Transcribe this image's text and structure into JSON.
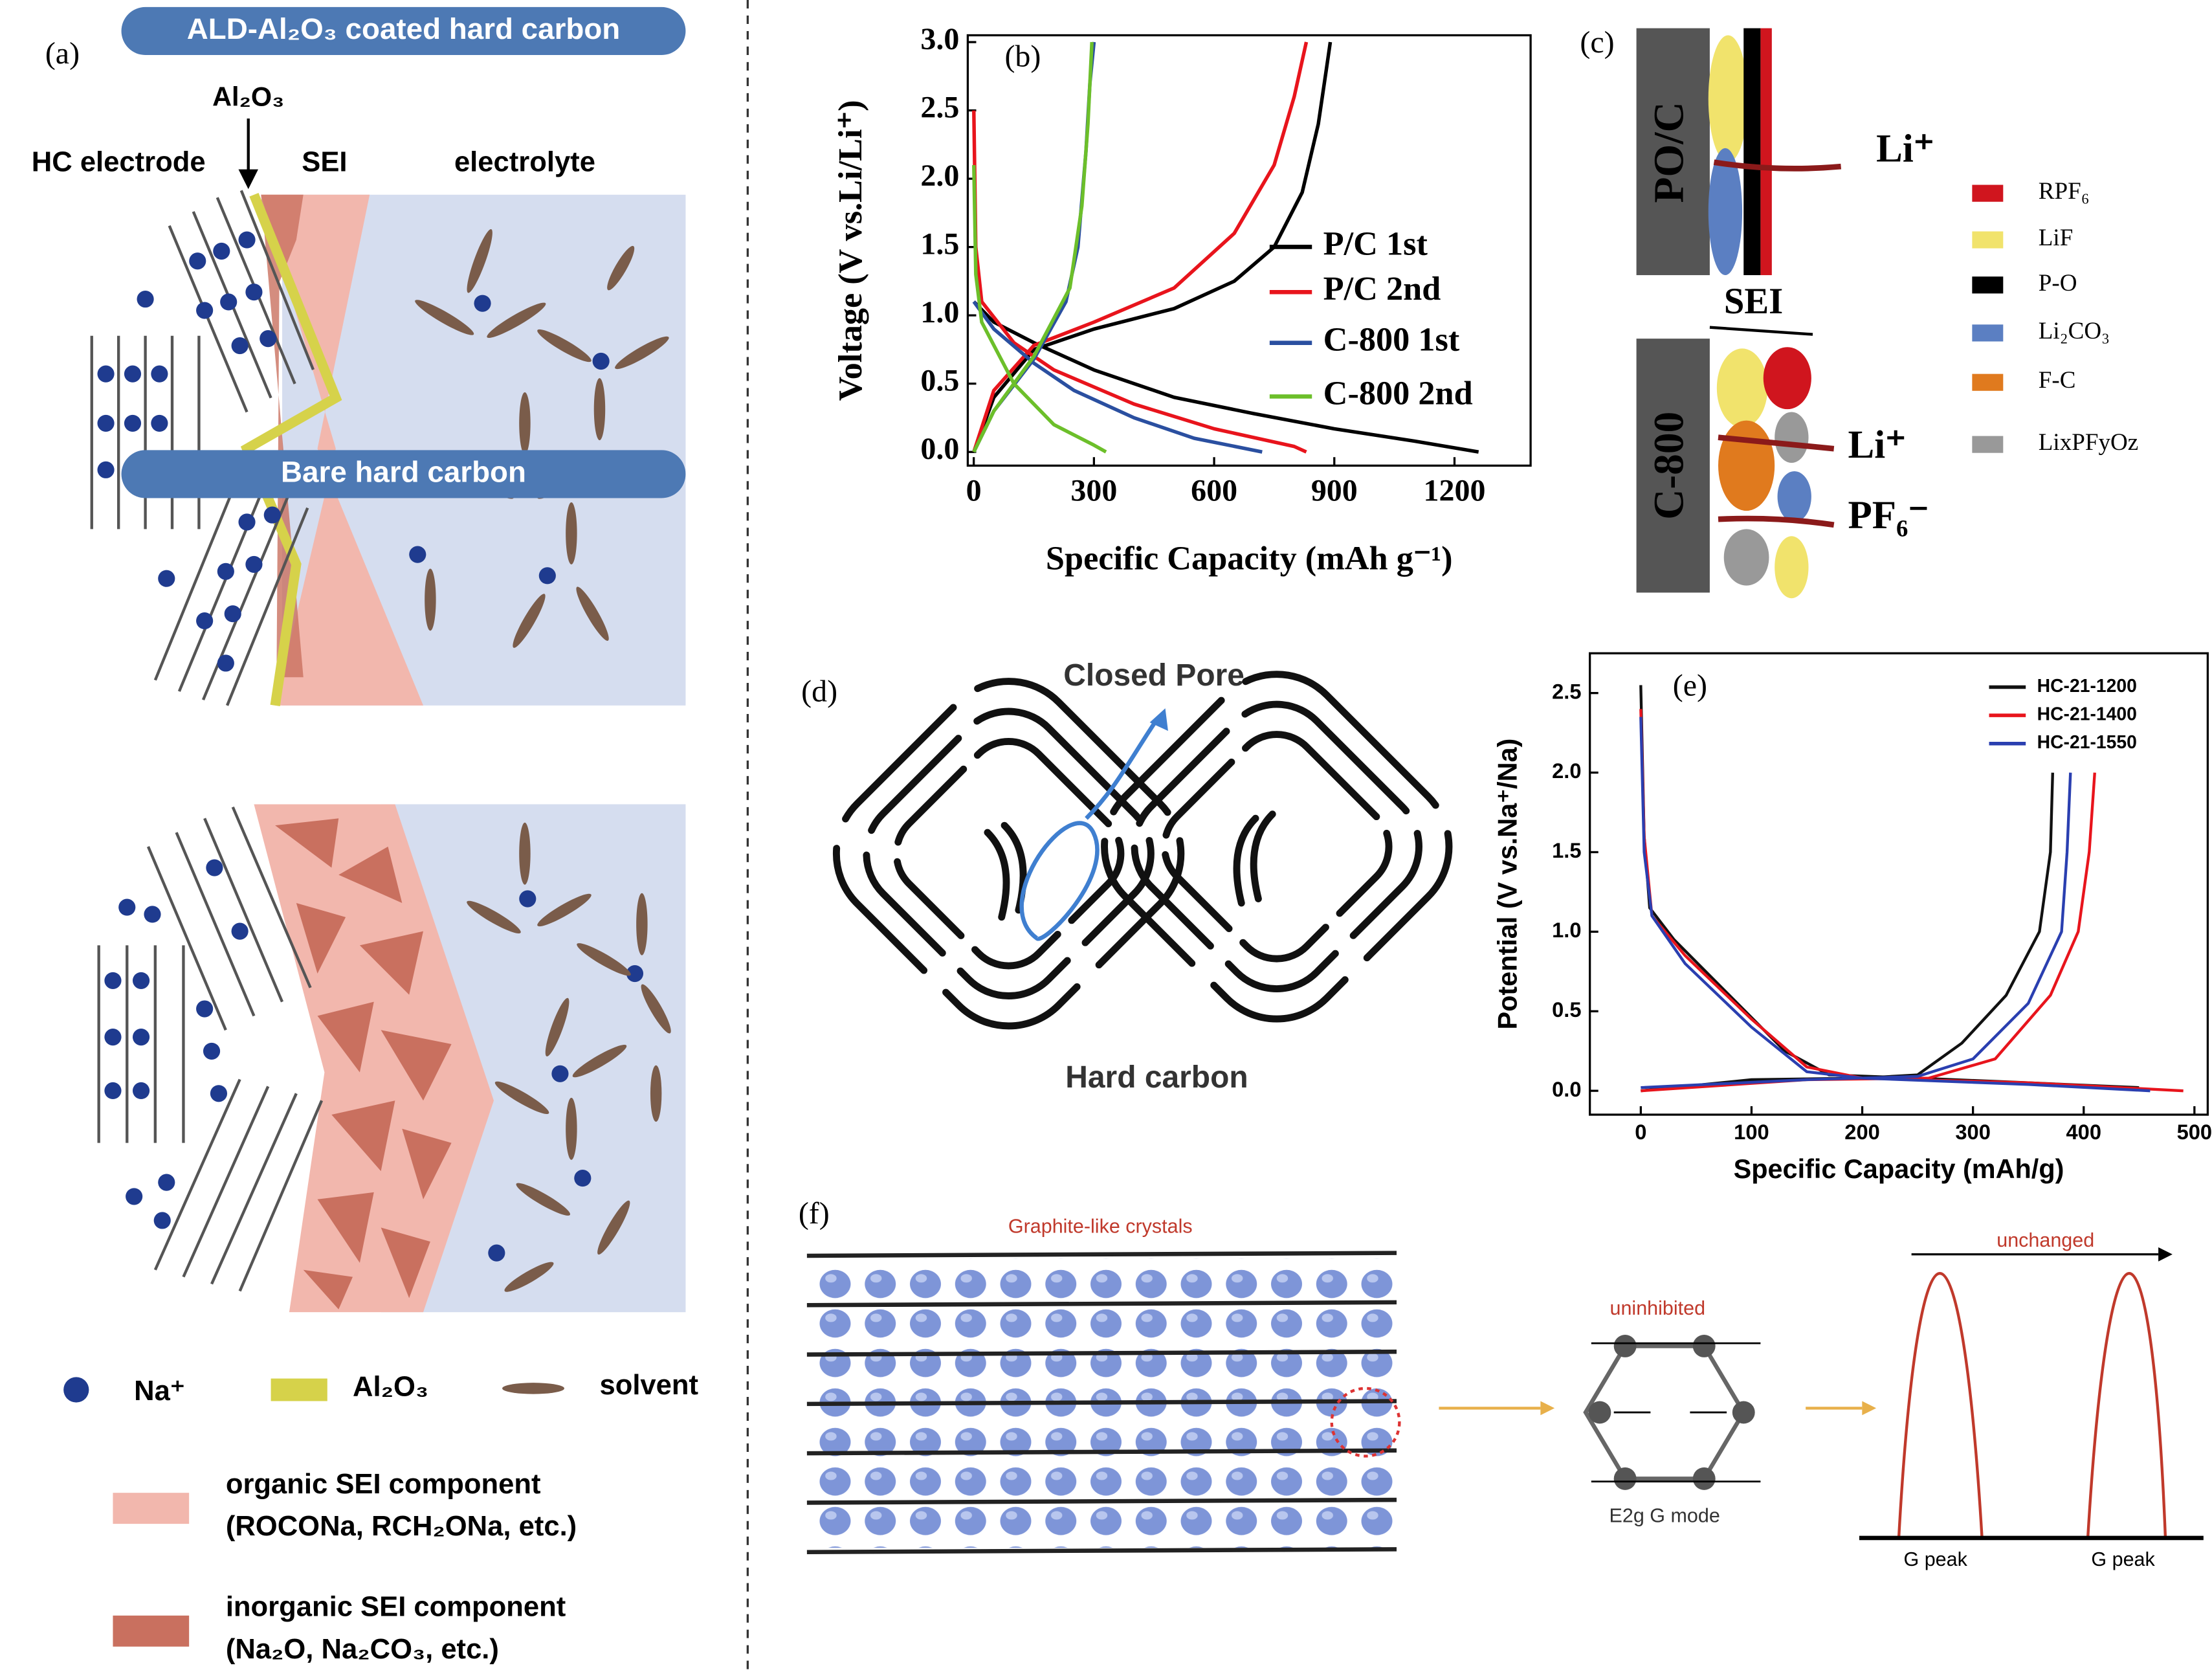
{
  "chart_data": [
    {
      "type": "line",
      "panel_label": "(b)",
      "x_label": "Specific Capacity (mAh g⁻¹)",
      "y_label": "Voltage (V vs.Li/Li⁺)",
      "xlim": [
        -15,
        1390
      ],
      "ylim": [
        -0.1,
        3.05
      ],
      "xticks": [
        0,
        300,
        600,
        900,
        1200
      ],
      "yticks": [
        {
          "value": 0,
          "label": "0.0"
        },
        0.5,
        {
          "value": 1,
          "label": "1.0"
        },
        1.5,
        {
          "value": 2,
          "label": "2.0"
        },
        2.5,
        {
          "value": 3,
          "label": "3.0"
        }
      ],
      "series": [
        {
          "name": "P/C 1st",
          "color": "#000000",
          "x": [
            0,
            50,
            150,
            300,
            500,
            700,
            900,
            1100,
            1260,
            null,
            0,
            50,
            150,
            300,
            500,
            650,
            750,
            820,
            860,
            880,
            890
          ],
          "values": [
            1.1,
            0.95,
            0.8,
            0.6,
            0.4,
            0.28,
            0.17,
            0.08,
            0.0,
            null,
            0.0,
            0.4,
            0.75,
            0.9,
            1.05,
            1.25,
            1.5,
            1.9,
            2.4,
            2.8,
            3.0
          ]
        },
        {
          "name": "P/C 2nd",
          "color": "#e8141c",
          "x": [
            0,
            5,
            20,
            100,
            200,
            400,
            600,
            800,
            830,
            null,
            0,
            50,
            150,
            300,
            500,
            650,
            750,
            800,
            830
          ],
          "values": [
            2.5,
            1.5,
            1.1,
            0.8,
            0.6,
            0.35,
            0.17,
            0.04,
            0.0,
            null,
            0.0,
            0.45,
            0.78,
            0.95,
            1.2,
            1.6,
            2.1,
            2.6,
            3.0
          ]
        },
        {
          "name": "C-800 1st",
          "color": "#2a4fa0",
          "x": [
            0,
            50,
            150,
            250,
            400,
            550,
            720,
            null,
            0,
            50,
            150,
            230,
            260,
            280,
            290,
            300
          ],
          "values": [
            1.1,
            0.9,
            0.65,
            0.45,
            0.25,
            0.1,
            0.0,
            null,
            0.0,
            0.3,
            0.68,
            1.1,
            1.5,
            2.2,
            2.7,
            3.0
          ]
        },
        {
          "name": "C-800  2nd",
          "color": "#6cbf2a",
          "x": [
            0,
            5,
            20,
            100,
            200,
            300,
            330,
            null,
            0,
            50,
            150,
            240,
            270,
            285,
            295
          ],
          "values": [
            2.1,
            1.3,
            0.95,
            0.5,
            0.2,
            0.05,
            0.0,
            null,
            0.0,
            0.3,
            0.7,
            1.2,
            1.8,
            2.4,
            3.0
          ]
        }
      ]
    },
    {
      "type": "line",
      "panel_label": "(e)",
      "x_label": "Specific Capacity (mAh/g)",
      "y_label": "Potential (V vs.Na⁺/Na)",
      "xlim": [
        -46,
        512
      ],
      "ylim": [
        -0.15,
        2.75
      ],
      "xticks": [
        0,
        100,
        200,
        300,
        400,
        500
      ],
      "yticks": [
        {
          "value": 0,
          "label": "0.0"
        },
        0.5,
        {
          "value": 1,
          "label": "1.0"
        },
        1.5,
        {
          "value": 2,
          "label": "2.0"
        },
        2.5
      ],
      "series": [
        {
          "name": "HC-21-1200",
          "color": "#111111",
          "x": [
            0,
            3,
            8,
            30,
            80,
            130,
            170,
            250,
            350,
            450,
            null,
            0,
            100,
            200,
            250,
            290,
            330,
            360,
            370,
            372
          ],
          "values": [
            2.55,
            1.6,
            1.15,
            0.95,
            0.6,
            0.25,
            0.1,
            0.08,
            0.05,
            0.02,
            null,
            0.0,
            0.07,
            0.08,
            0.1,
            0.3,
            0.6,
            1.0,
            1.5,
            2.0
          ]
        },
        {
          "name": "HC-21-1400",
          "color": "#e8141c",
          "x": [
            0,
            3,
            10,
            40,
            100,
            150,
            200,
            350,
            490,
            null,
            0,
            150,
            260,
            320,
            370,
            395,
            405,
            410
          ],
          "values": [
            2.4,
            1.6,
            1.1,
            0.85,
            0.45,
            0.15,
            0.08,
            0.05,
            0.0,
            null,
            0.0,
            0.07,
            0.08,
            0.2,
            0.6,
            1.0,
            1.5,
            2.0
          ]
        },
        {
          "name": "HC-21-1550",
          "color": "#2a3fb0",
          "x": [
            0,
            3,
            10,
            40,
            100,
            150,
            200,
            350,
            460,
            null,
            0,
            150,
            250,
            300,
            350,
            380,
            385,
            388
          ],
          "values": [
            2.35,
            1.5,
            1.1,
            0.8,
            0.4,
            0.12,
            0.08,
            0.04,
            0.0,
            null,
            0.02,
            0.07,
            0.09,
            0.2,
            0.55,
            1.0,
            1.5,
            2.0
          ]
        }
      ]
    }
  ],
  "panel_a": {
    "label": "(a)",
    "top_title": "ALD-Al₂O₃ coated hard carbon",
    "al2o3": "Al₂O₃",
    "hc_electrode": "HC electrode",
    "sei": "SEI",
    "electrolyte": "electrolyte",
    "bottom_title": "Bare hard carbon",
    "legend": {
      "na": "Na⁺",
      "al2o3": "Al₂O₃",
      "solvent": "solvent",
      "organic": "organic SEI component",
      "organic_examples": "(ROCONa, RCH₂ONa, etc.)",
      "inorganic": "inorganic SEI component",
      "inorganic_examples": "(Na₂O, Na₂CO₃, etc.)"
    }
  },
  "panel_c": {
    "label": "(c)",
    "top_electrode": "PO/C",
    "sei": "SEI",
    "bottom_electrode": "C-800",
    "li_top": "Li⁺",
    "li_bottom": "Li⁺",
    "pf6": "PF₆⁻",
    "legend": [
      "RPF₆",
      "LiF",
      "P-O",
      "Li₂CO₃",
      "F-C",
      "LixPFyOz"
    ]
  },
  "panel_d": {
    "label": "(d)",
    "closed_pore": "Closed Pore",
    "hard_carbon": "Hard carbon"
  },
  "panel_f": {
    "label": "(f)",
    "crystals": "Graphite-like crystals",
    "uninhibited": "uninhibited",
    "mode": "E2g G mode",
    "unchanged": "unchanged",
    "peak_1": "G peak",
    "peak_2": "G peak"
  }
}
